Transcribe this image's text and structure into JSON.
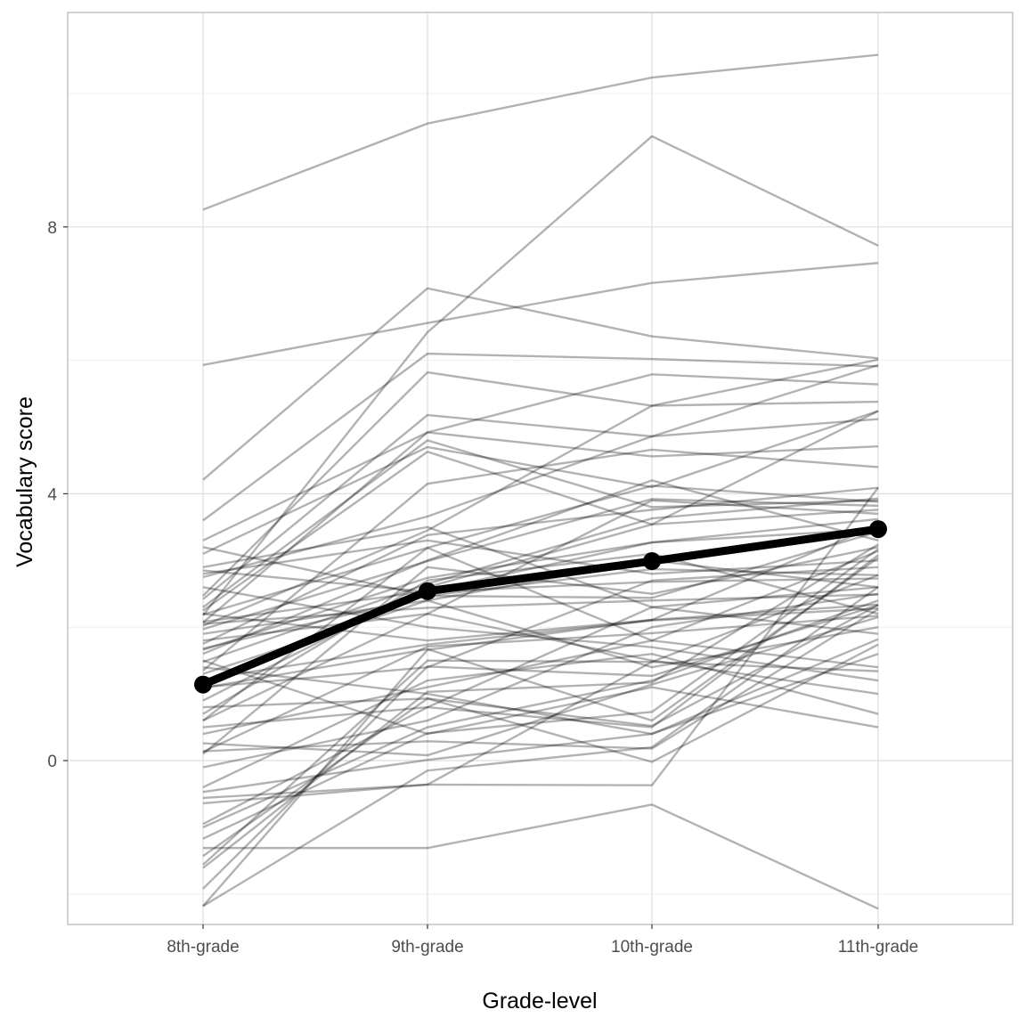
{
  "chart_data": {
    "type": "line",
    "title": "",
    "xlabel": "Grade-level",
    "ylabel": "Vocabulary score",
    "categories": [
      "8th-grade",
      "9th-grade",
      "10th-grade",
      "11th-grade"
    ],
    "yticks": [
      0,
      4,
      8
    ],
    "ylim": [
      -2.45,
      11.2
    ],
    "grid": true,
    "colors": {
      "individual": "#000000",
      "mean": "#000000",
      "grid": "#dedede",
      "panel_border": "#b3b3b3"
    },
    "mean": {
      "values": [
        1.14,
        2.54,
        2.99,
        3.47
      ]
    },
    "individuals": [
      [
        8.26,
        9.55,
        10.24,
        10.58
      ],
      [
        2.18,
        6.42,
        9.36,
        7.72
      ],
      [
        5.93,
        6.56,
        7.16,
        7.46
      ],
      [
        4.21,
        7.08,
        6.36,
        6.03
      ],
      [
        3.6,
        6.1,
        6.02,
        5.91
      ],
      [
        3.3,
        4.92,
        5.79,
        5.64
      ],
      [
        2.47,
        5.82,
        5.32,
        5.38
      ],
      [
        2.42,
        5.18,
        4.86,
        5.93
      ],
      [
        3.1,
        4.7,
        4.1,
        5.24
      ],
      [
        2.07,
        4.92,
        4.56,
        4.71
      ],
      [
        2.25,
        4.63,
        3.54,
        5.24
      ],
      [
        1.35,
        4.15,
        4.66,
        4.4
      ],
      [
        2.75,
        3.66,
        4.86,
        5.12
      ],
      [
        2.02,
        3.45,
        5.32,
        6.01
      ],
      [
        1.75,
        3.38,
        3.76,
        4.09
      ],
      [
        2.19,
        3.19,
        4.12,
        3.88
      ],
      [
        1.97,
        2.99,
        3.92,
        3.82
      ],
      [
        1.66,
        2.74,
        3.27,
        3.62
      ],
      [
        1.48,
        2.65,
        3.63,
        3.93
      ],
      [
        0.9,
        2.6,
        3.54,
        3.76
      ],
      [
        2.08,
        2.54,
        3.27,
        3.47
      ],
      [
        3.2,
        2.47,
        2.87,
        2.78
      ],
      [
        2.85,
        2.53,
        2.68,
        2.73
      ],
      [
        1.68,
        2.47,
        2.44,
        3.43
      ],
      [
        2.05,
        2.29,
        2.4,
        2.49
      ],
      [
        2.2,
        1.8,
        2.11,
        2.34
      ],
      [
        1.22,
        1.74,
        2.1,
        2.28
      ],
      [
        0.13,
        1.71,
        1.91,
        2.17
      ],
      [
        0.6,
        3.19,
        1.8,
        3.14
      ],
      [
        1.09,
        1.67,
        0.6,
        3.04
      ],
      [
        -1.56,
        1.5,
        1.48,
        2.78
      ],
      [
        -1.92,
        1.41,
        1.27,
        2.33
      ],
      [
        -1.61,
        1.03,
        1.17,
        3.24
      ],
      [
        0.8,
        0.93,
        0.52,
        2.33
      ],
      [
        -0.95,
        0.8,
        0.5,
        3.08
      ],
      [
        -1.17,
        0.41,
        0.73,
        3.17
      ],
      [
        0.14,
        0.29,
        0.18,
        2.27
      ],
      [
        0.26,
        0.08,
        1.14,
        2.15
      ],
      [
        -0.47,
        0.01,
        0.4,
        1.82
      ],
      [
        -0.64,
        -0.36,
        -0.37,
        4.09
      ],
      [
        -1.31,
        -1.31,
        -0.66,
        -2.22
      ],
      [
        -0.56,
        -0.36,
        1.48,
        1.34
      ],
      [
        -1.43,
        0.93,
        -0.02,
        1.74
      ],
      [
        -2.18,
        1.66,
        2.11,
        3.53
      ],
      [
        0.6,
        2.2,
        1.5,
        1.0
      ],
      [
        1.4,
        1.0,
        0.4,
        1.6
      ],
      [
        2.6,
        2.0,
        1.7,
        1.2
      ],
      [
        1.9,
        2.4,
        3.0,
        2.6
      ],
      [
        0.1,
        2.9,
        2.5,
        3.2
      ],
      [
        1.8,
        2.2,
        3.9,
        3.7
      ],
      [
        2.9,
        3.5,
        2.3,
        2.6
      ],
      [
        1.1,
        1.4,
        2.7,
        2.9
      ],
      [
        -0.4,
        1.2,
        1.6,
        0.7
      ],
      [
        0.7,
        2.7,
        3.1,
        2.2
      ],
      [
        2.3,
        4.8,
        3.8,
        3.9
      ],
      [
        1.5,
        0.4,
        1.1,
        0.5
      ],
      [
        -0.1,
        0.6,
        2.0,
        2.5
      ],
      [
        -2.18,
        -0.15,
        0.2,
        2.6
      ],
      [
        0.4,
        1.1,
        1.8,
        1.4
      ],
      [
        1.3,
        2.4,
        1.4,
        2.0
      ],
      [
        2.8,
        3.3,
        2.8,
        3.0
      ],
      [
        0.5,
        0.8,
        2.3,
        1.9
      ],
      [
        -1.0,
        0.5,
        1.2,
        2.4
      ],
      [
        1.6,
        3.0,
        4.2,
        3.3
      ]
    ]
  }
}
